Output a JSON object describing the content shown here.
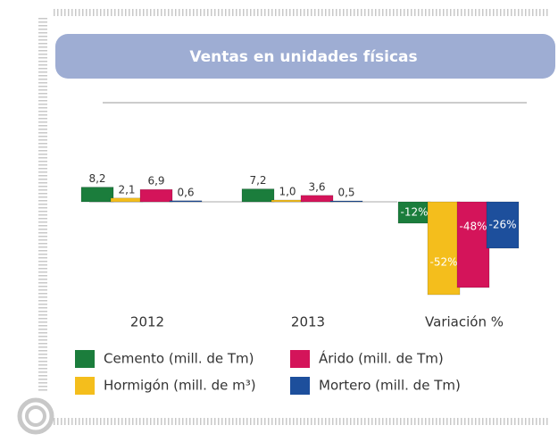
{
  "chart_data": {
    "type": "bar",
    "title": "Ventas en unidades físicas",
    "categories": [
      "2012",
      "2013",
      "Variación %"
    ],
    "ylim": [
      -55,
      10
    ],
    "series": [
      {
        "name": "Cemento (mill. de Tm)",
        "color": "#1b7d3c",
        "values": [
          8.2,
          7.2,
          -12
        ],
        "value_labels": [
          "8,2",
          "7,2",
          "-12%"
        ]
      },
      {
        "name": "Hormigón (mill. de m³)",
        "color": "#f4be1c",
        "values": [
          2.1,
          1.0,
          -52
        ],
        "value_labels": [
          "2,1",
          "1,0",
          "-52%"
        ]
      },
      {
        "name": "Árido (mill. de Tm)",
        "color": "#d4145a",
        "values": [
          6.9,
          3.6,
          -48
        ],
        "value_labels": [
          "6,9",
          "3,6",
          "-48%"
        ]
      },
      {
        "name": "Mortero (mill. de Tm)",
        "color": "#1d4f9c",
        "values": [
          0.6,
          0.5,
          -26
        ],
        "value_labels": [
          "0,6",
          "0,5",
          "-26%"
        ]
      }
    ]
  }
}
